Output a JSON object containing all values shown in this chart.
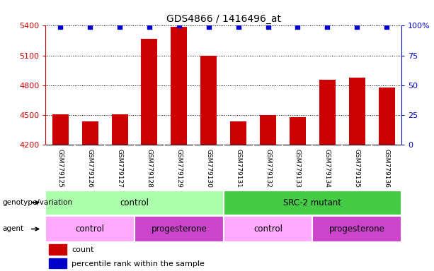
{
  "title": "GDS4866 / 1416496_at",
  "samples": [
    "GSM779125",
    "GSM779126",
    "GSM779127",
    "GSM779128",
    "GSM779129",
    "GSM779130",
    "GSM779131",
    "GSM779132",
    "GSM779133",
    "GSM779134",
    "GSM779135",
    "GSM779136"
  ],
  "counts": [
    4505,
    4440,
    4510,
    5270,
    5390,
    5095,
    4440,
    4500,
    4480,
    4860,
    4880,
    4775
  ],
  "percentile": [
    99,
    99,
    99,
    99,
    100,
    99,
    99,
    99,
    99,
    99,
    99,
    99
  ],
  "bar_color": "#cc0000",
  "dot_color": "#0000cc",
  "ylim_left": [
    4200,
    5400
  ],
  "ylim_right": [
    0,
    100
  ],
  "yticks_left": [
    4200,
    4500,
    4800,
    5100,
    5400
  ],
  "yticks_right": [
    0,
    25,
    50,
    75,
    100
  ],
  "genotype_groups": [
    {
      "label": "control",
      "start": 0,
      "end": 6,
      "color": "#aaffaa"
    },
    {
      "label": "SRC-2 mutant",
      "start": 6,
      "end": 12,
      "color": "#44cc44"
    }
  ],
  "agent_groups": [
    {
      "label": "control",
      "start": 0,
      "end": 3,
      "color": "#ffaaff"
    },
    {
      "label": "progesterone",
      "start": 3,
      "end": 6,
      "color": "#cc44cc"
    },
    {
      "label": "control",
      "start": 6,
      "end": 9,
      "color": "#ffaaff"
    },
    {
      "label": "progesterone",
      "start": 9,
      "end": 12,
      "color": "#cc44cc"
    }
  ],
  "legend_count_color": "#cc0000",
  "legend_pct_color": "#0000cc",
  "bg_color": "#ffffff",
  "label_area_color": "#c8c8c8"
}
